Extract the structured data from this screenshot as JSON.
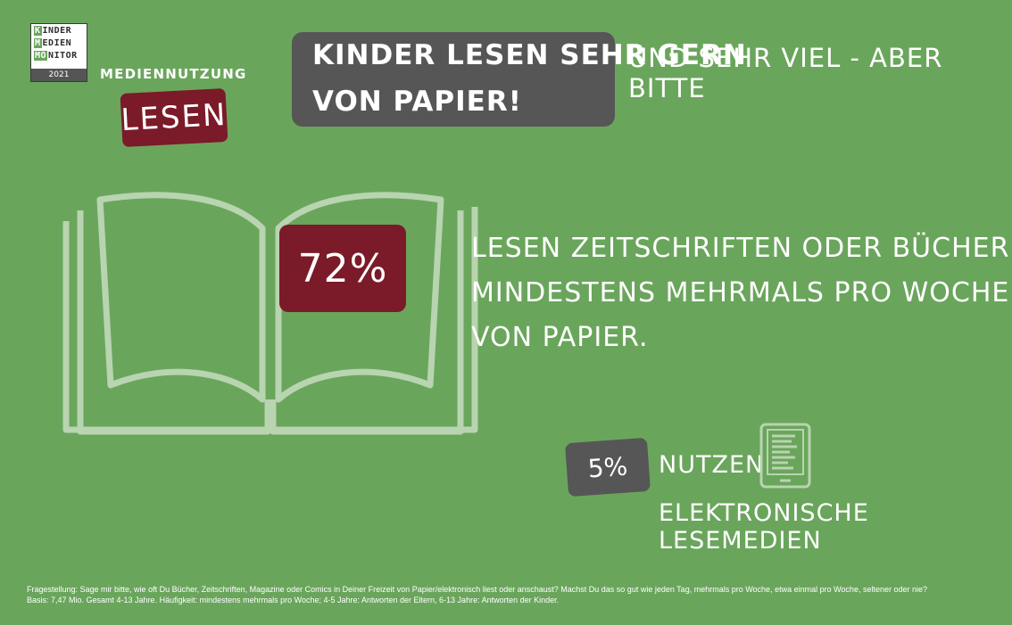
{
  "logo": {
    "line1_initial": "K",
    "line1_rest": "INDER",
    "line2_initial": "M",
    "line2_rest": "EDIEN",
    "line3_initial": "MO",
    "line3_rest": "NITOR",
    "year": "2021"
  },
  "category": "MEDIENNUTZUNG",
  "topic": "LESEN",
  "headline": {
    "part1": "KINDER LESEN SEHR GERN",
    "part2": "UND SEHR VIEL - ABER BITTE",
    "part3": "VON PAPIER!"
  },
  "stat_main": {
    "value": "72%",
    "line1": "LESEN ZEITSCHRIFTEN ODER BÜCHER",
    "line2": "MINDESTENS MEHRMALS PRO WOCHE",
    "line3": "VON PAPIER."
  },
  "stat_secondary": {
    "value": "5%",
    "line1": "NUTZEN",
    "line2": "ELEKTRONISCHE LESEMEDIEN"
  },
  "icons": {
    "book": "open-book-icon",
    "ereader": "ereader-icon"
  },
  "colors": {
    "background": "#6aa55c",
    "accent_red": "#7b1a28",
    "accent_gray": "#565656",
    "outline": "#b8d4b0"
  },
  "footnote": {
    "line1": "Fragestellung: Sage mir bitte, wie oft Du Bücher, Zeitschriften, Magazine oder Comics in Deiner Freizeit von Papier/elektronisch liest oder anschaust? Machst Du das so gut wie jeden Tag, mehrmals pro Woche, etwa einmal pro Woche, seltener oder nie?",
    "line2": "Basis: 7,47 Mio. Gesamt 4-13 Jahre. Häufigkeit: mindestens mehrmals pro Woche; 4-5 Jahre: Antworten der Eltern, 6-13 Jahre: Antworten der Kinder."
  }
}
